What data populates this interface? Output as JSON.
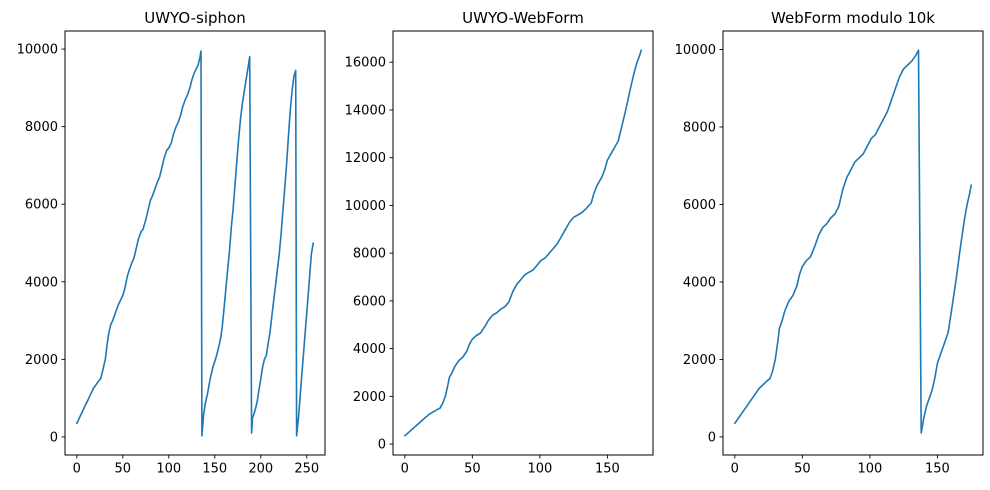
{
  "figure": {
    "background": "#ffffff",
    "line_color": "#1f77b4",
    "spine_color": "#000000",
    "text_color": "#000000"
  },
  "chart_data": [
    {
      "type": "line",
      "title": "UWYO-siphon",
      "xlabel": "",
      "ylabel": "",
      "grid": false,
      "legend": null,
      "xlim": [
        -12.85,
        269.85
      ],
      "ylim": [
        -466,
        10466
      ],
      "xticks": [
        0,
        50,
        100,
        150,
        200,
        250
      ],
      "yticks": [
        0,
        2000,
        4000,
        6000,
        8000,
        10000
      ],
      "x": [
        0,
        3,
        6,
        9,
        12,
        15,
        18,
        21,
        24,
        26,
        28,
        30,
        31,
        33,
        35,
        37,
        39,
        42,
        45,
        48,
        50,
        52,
        55,
        57,
        60,
        62,
        65,
        67,
        70,
        72,
        75,
        77,
        80,
        82,
        85,
        88,
        90,
        93,
        95,
        98,
        100,
        103,
        105,
        108,
        110,
        113,
        115,
        118,
        120,
        123,
        125,
        128,
        130,
        132,
        134,
        135,
        136,
        138,
        140,
        142,
        145,
        148,
        150,
        152,
        154,
        156,
        158,
        160,
        162,
        164,
        166,
        168,
        170,
        172,
        174,
        176,
        178,
        180,
        182,
        184,
        186,
        188,
        190,
        191,
        192,
        194,
        196,
        198,
        200,
        202,
        204,
        206,
        208,
        210,
        212,
        214,
        216,
        218,
        220,
        222,
        224,
        226,
        228,
        230,
        232,
        234,
        236,
        238,
        239,
        241,
        243,
        245,
        247,
        249,
        251,
        253,
        255,
        257
      ],
      "y": [
        350,
        500,
        650,
        800,
        950,
        1100,
        1250,
        1350,
        1450,
        1500,
        1700,
        1900,
        2000,
        2400,
        2700,
        2900,
        3000,
        3200,
        3400,
        3550,
        3650,
        3800,
        4150,
        4300,
        4500,
        4600,
        4900,
        5100,
        5300,
        5350,
        5600,
        5800,
        6100,
        6200,
        6400,
        6600,
        6700,
        7000,
        7200,
        7400,
        7450,
        7600,
        7800,
        8000,
        8100,
        8300,
        8500,
        8700,
        8800,
        9000,
        9200,
        9400,
        9500,
        9600,
        9800,
        9950,
        30,
        600,
        900,
        1100,
        1500,
        1800,
        1950,
        2100,
        2300,
        2500,
        2800,
        3300,
        3800,
        4300,
        4800,
        5400,
        5900,
        6500,
        7100,
        7700,
        8200,
        8600,
        8900,
        9200,
        9500,
        9800,
        100,
        500,
        550,
        700,
        900,
        1200,
        1500,
        1800,
        2000,
        2100,
        2400,
        2700,
        3100,
        3500,
        3900,
        4300,
        4700,
        5200,
        5800,
        6400,
        7000,
        7700,
        8400,
        8900,
        9300,
        9450,
        30,
        500,
        1100,
        1700,
        2300,
        2900,
        3500,
        4100,
        4700,
        5000
      ]
    },
    {
      "type": "line",
      "title": "UWYO-WebForm",
      "xlabel": "",
      "ylabel": "",
      "grid": false,
      "legend": null,
      "xlim": [
        -8.75,
        183.75
      ],
      "ylim": [
        -457,
        17307
      ],
      "xticks": [
        0,
        50,
        100,
        150
      ],
      "yticks": [
        0,
        2000,
        4000,
        6000,
        8000,
        10000,
        12000,
        14000,
        16000
      ],
      "x": [
        0,
        3,
        6,
        9,
        12,
        15,
        18,
        21,
        24,
        26,
        28,
        30,
        32,
        33,
        35,
        37,
        40,
        43,
        46,
        48,
        50,
        53,
        56,
        59,
        62,
        65,
        68,
        71,
        74,
        77,
        80,
        83,
        86,
        89,
        92,
        95,
        98,
        101,
        104,
        107,
        110,
        113,
        116,
        119,
        122,
        125,
        128,
        131,
        134,
        136,
        138,
        140,
        142,
        144,
        146,
        148,
        150,
        152,
        155,
        158,
        161,
        164,
        167,
        170,
        172,
        174,
        175
      ],
      "y": [
        350,
        500,
        650,
        800,
        950,
        1100,
        1250,
        1350,
        1450,
        1500,
        1700,
        2000,
        2500,
        2800,
        3000,
        3250,
        3500,
        3650,
        3900,
        4200,
        4400,
        4550,
        4650,
        4900,
        5200,
        5400,
        5500,
        5650,
        5750,
        5950,
        6400,
        6700,
        6900,
        7100,
        7200,
        7300,
        7500,
        7700,
        7800,
        8000,
        8200,
        8400,
        8700,
        9000,
        9300,
        9500,
        9600,
        9700,
        9850,
        9980,
        10100,
        10500,
        10800,
        11000,
        11200,
        11500,
        11900,
        12100,
        12400,
        12700,
        13400,
        14100,
        14900,
        15600,
        16000,
        16300,
        16500
      ]
    },
    {
      "type": "line",
      "title": "WebForm modulo 10k",
      "xlabel": "",
      "ylabel": "",
      "grid": false,
      "legend": null,
      "xlim": [
        -8.75,
        183.75
      ],
      "ylim": [
        -467,
        10477
      ],
      "xticks": [
        0,
        50,
        100,
        150
      ],
      "yticks": [
        0,
        2000,
        4000,
        6000,
        8000,
        10000
      ],
      "x": [
        0,
        3,
        6,
        9,
        12,
        15,
        18,
        21,
        24,
        26,
        28,
        30,
        32,
        33,
        35,
        37,
        40,
        43,
        46,
        48,
        50,
        53,
        56,
        59,
        62,
        65,
        68,
        71,
        74,
        77,
        80,
        83,
        86,
        89,
        92,
        95,
        98,
        101,
        104,
        107,
        110,
        113,
        116,
        119,
        122,
        125,
        128,
        131,
        134,
        136,
        138,
        140,
        142,
        144,
        146,
        148,
        150,
        152,
        155,
        158,
        161,
        164,
        167,
        170,
        172,
        174,
        175
      ],
      "y": [
        350,
        500,
        650,
        800,
        950,
        1100,
        1250,
        1350,
        1450,
        1500,
        1700,
        2000,
        2500,
        2800,
        3000,
        3250,
        3500,
        3650,
        3900,
        4200,
        4400,
        4550,
        4650,
        4900,
        5200,
        5400,
        5500,
        5650,
        5750,
        5950,
        6400,
        6700,
        6900,
        7100,
        7200,
        7300,
        7500,
        7700,
        7800,
        8000,
        8200,
        8400,
        8700,
        9000,
        9300,
        9500,
        9600,
        9700,
        9850,
        9980,
        100,
        500,
        800,
        1000,
        1200,
        1500,
        1900,
        2100,
        2400,
        2700,
        3400,
        4100,
        4900,
        5600,
        6000,
        6300,
        6500
      ]
    }
  ]
}
